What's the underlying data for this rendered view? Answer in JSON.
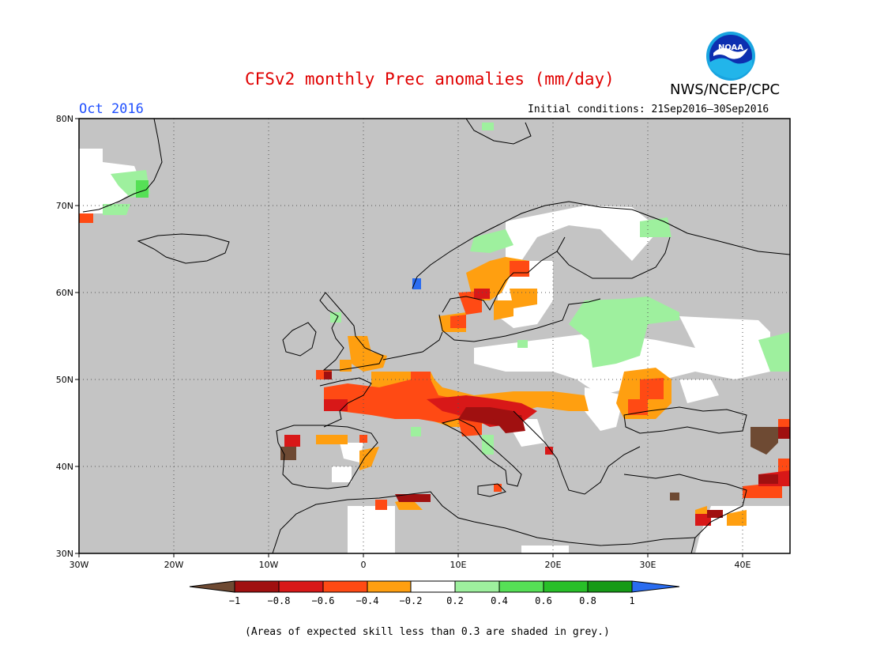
{
  "header": {
    "title": "CFSv2 monthly Prec anomalies (mm/day)",
    "agency": "NWS/NCEP/CPC",
    "logo_text": "NOAA",
    "valid_month": "Oct 2016",
    "initial_conditions": "Initial conditions: 21Sep2016–30Sep2016"
  },
  "axes": {
    "lat_labels": [
      "80N",
      "70N",
      "60N",
      "50N",
      "40N",
      "30N"
    ],
    "lon_labels": [
      "30W",
      "20W",
      "10W",
      "0",
      "10E",
      "20E",
      "30E",
      "40E"
    ]
  },
  "legend": {
    "tick_labels": [
      "−1",
      "−0.8",
      "−0.6",
      "−0.4",
      "−0.2",
      "0.2",
      "0.4",
      "0.6",
      "0.8",
      "1"
    ],
    "colors": [
      "#6e4a33",
      "#a01010",
      "#d81818",
      "#ff4a14",
      "#ff9f10",
      "#ffffff",
      "#9ef09e",
      "#56e056",
      "#28bf28",
      "#169a16",
      "#2a6cf0"
    ]
  },
  "colors": {
    "skill_mask": "#c4c4c4",
    "no_anomaly": "#ffffff",
    "title": "#e00000",
    "month_label": "#2050ff"
  },
  "footnote": "(Areas of expected skill less than 0.3 are shaded in grey.)"
}
